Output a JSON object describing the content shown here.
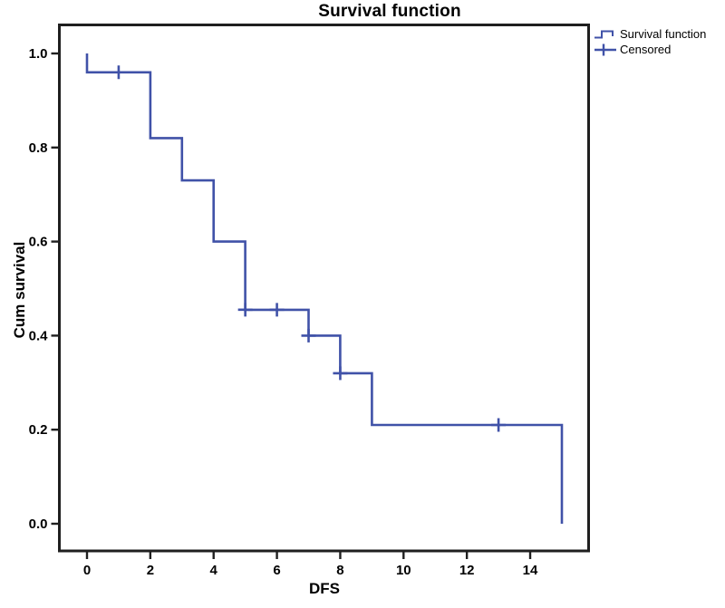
{
  "colors": {
    "curve": "#4052a8",
    "axis": "#1f1f1f",
    "text": "#000000",
    "background": "#ffffff"
  },
  "chart_data": {
    "type": "line",
    "subtype": "kaplan-meier-step",
    "title": "Survival function",
    "xlabel": "DFS",
    "ylabel": "Cum survival",
    "xlim": [
      -0.9,
      15.9
    ],
    "ylim": [
      -0.06,
      1.06
    ],
    "x_ticks": [
      "0",
      "2",
      "4",
      "6",
      "8",
      "10",
      "12",
      "14"
    ],
    "y_ticks": [
      "0.0",
      "0.2",
      "0.4",
      "0.6",
      "0.8",
      "1.0"
    ],
    "grid": false,
    "legend_position": "top-right-outside",
    "series": [
      {
        "name": "Survival function",
        "type": "step",
        "points": [
          [
            0,
            1.0
          ],
          [
            0,
            0.96
          ],
          [
            2,
            0.96
          ],
          [
            2,
            0.82
          ],
          [
            3,
            0.82
          ],
          [
            3,
            0.73
          ],
          [
            4,
            0.73
          ],
          [
            4,
            0.6
          ],
          [
            5,
            0.6
          ],
          [
            5,
            0.455
          ],
          [
            7,
            0.455
          ],
          [
            7,
            0.4
          ],
          [
            8,
            0.4
          ],
          [
            8,
            0.32
          ],
          [
            9,
            0.32
          ],
          [
            9,
            0.21
          ],
          [
            15,
            0.21
          ],
          [
            15,
            0.0
          ]
        ]
      },
      {
        "name": "Censored",
        "type": "plus-markers",
        "points": [
          [
            1,
            0.96
          ],
          [
            5,
            0.455
          ],
          [
            6,
            0.455
          ],
          [
            7,
            0.4
          ],
          [
            8,
            0.32
          ],
          [
            13,
            0.21
          ]
        ]
      }
    ]
  }
}
